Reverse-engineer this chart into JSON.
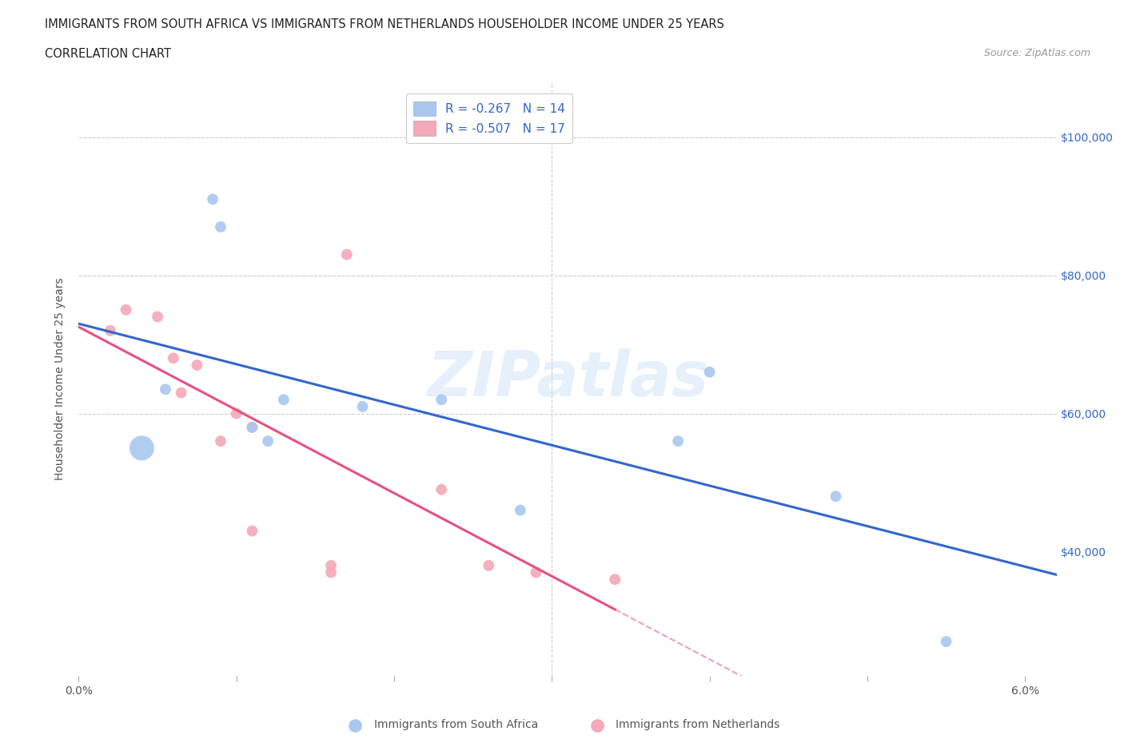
{
  "title_line1": "IMMIGRANTS FROM SOUTH AFRICA VS IMMIGRANTS FROM NETHERLANDS HOUSEHOLDER INCOME UNDER 25 YEARS",
  "title_line2": "CORRELATION CHART",
  "source": "Source: ZipAtlas.com",
  "ylabel": "Householder Income Under 25 years",
  "xlim": [
    0.0,
    0.062
  ],
  "ylim": [
    22000,
    108000
  ],
  "xticks": [
    0.0,
    0.01,
    0.02,
    0.03,
    0.04,
    0.05,
    0.06
  ],
  "xticklabels": [
    "0.0%",
    "",
    "",
    "",
    "",
    "",
    "6.0%"
  ],
  "ytick_positions": [
    40000,
    60000,
    80000,
    100000
  ],
  "ytick_labels": [
    "$40,000",
    "$60,000",
    "$80,000",
    "$100,000"
  ],
  "hlines": [
    60000,
    80000,
    100000
  ],
  "vline": 0.03,
  "south_africa_color": "#A8C8F0",
  "netherlands_color": "#F4A8B8",
  "south_africa_line_color": "#3366CC",
  "netherlands_line_color": "#E85080",
  "south_africa_R": -0.267,
  "south_africa_N": 14,
  "netherlands_R": -0.507,
  "netherlands_N": 17,
  "legend_label_sa": "Immigrants from South Africa",
  "legend_label_nl": "Immigrants from Netherlands",
  "watermark": "ZIPatlas",
  "south_africa_x": [
    0.004,
    0.0055,
    0.0085,
    0.009,
    0.011,
    0.012,
    0.013,
    0.018,
    0.023,
    0.028,
    0.038,
    0.04,
    0.048,
    0.055
  ],
  "south_africa_y": [
    55000,
    63500,
    91000,
    87000,
    58000,
    56000,
    62000,
    61000,
    62000,
    46000,
    56000,
    66000,
    48000,
    27000
  ],
  "south_africa_size": [
    500,
    100,
    100,
    100,
    100,
    100,
    100,
    100,
    100,
    100,
    100,
    100,
    100,
    100
  ],
  "netherlands_x": [
    0.002,
    0.003,
    0.005,
    0.006,
    0.0065,
    0.0075,
    0.009,
    0.01,
    0.011,
    0.011,
    0.016,
    0.016,
    0.017,
    0.023,
    0.026,
    0.029,
    0.034
  ],
  "netherlands_y": [
    72000,
    75000,
    74000,
    68000,
    63000,
    67000,
    56000,
    60000,
    58000,
    43000,
    38000,
    37000,
    83000,
    49000,
    38000,
    37000,
    36000
  ],
  "netherlands_size": [
    100,
    100,
    100,
    100,
    100,
    100,
    100,
    100,
    100,
    100,
    100,
    100,
    100,
    100,
    100,
    100,
    100
  ]
}
